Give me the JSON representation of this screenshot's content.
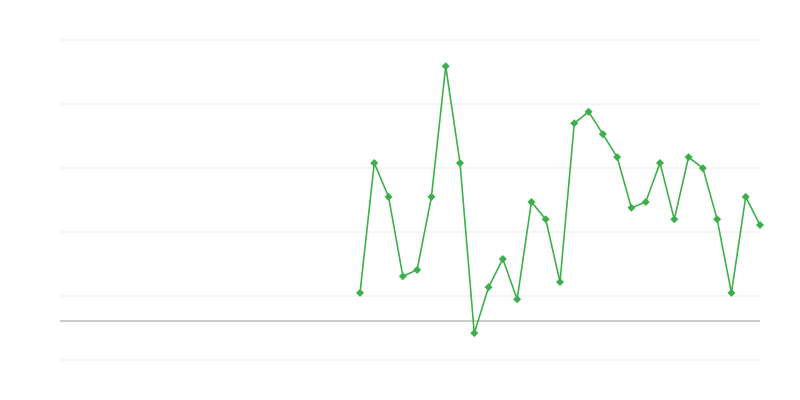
{
  "chart_data": {
    "type": "line",
    "categories": [
      null,
      null,
      null,
      null,
      null,
      null,
      null,
      null,
      null,
      null,
      null,
      null,
      null,
      null,
      null,
      null,
      null,
      null,
      null,
      null,
      null,
      null,
      null,
      null,
      null,
      null,
      null,
      null,
      null,
      null,
      null,
      null,
      null,
      null,
      null,
      null,
      null,
      null,
      null,
      null,
      null,
      null,
      null,
      null,
      null,
      null,
      null,
      null,
      null,
      null
    ],
    "series": [
      {
        "color": "#3aaf4a",
        "values": [
          null,
          null,
          null,
          null,
          null,
          null,
          null,
          null,
          null,
          null,
          null,
          null,
          null,
          null,
          null,
          null,
          null,
          null,
          null,
          null,
          null,
          4.4,
          24.7,
          19.4,
          7.0,
          8.0,
          19.4,
          39.8,
          24.7,
          -1.9,
          5.3,
          9.7,
          3.4,
          18.6,
          15.9,
          6.1,
          30.9,
          32.7,
          29.2,
          25.6,
          17.7,
          18.6,
          24.7,
          15.9,
          25.6,
          23.9,
          15.9,
          4.4,
          19.4,
          15.0
        ]
      }
    ],
    "ylim": [
      -6.09,
      43.91
    ],
    "yticks": [
      -6.09,
      3.91,
      13.91,
      23.91,
      33.91,
      43.91
    ],
    "grid": true,
    "zero_line": true,
    "marker": "diamond"
  }
}
